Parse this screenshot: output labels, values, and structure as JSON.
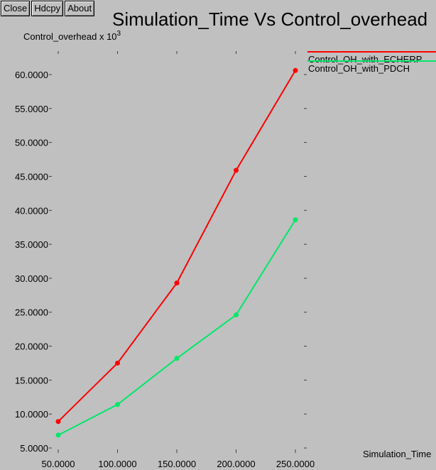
{
  "toolbar": {
    "close_label": "Close",
    "hdcpy_label": "Hdcpy",
    "about_label": "About"
  },
  "colors": {
    "background": "#c0c0c0",
    "axis": "#404040"
  },
  "chart_data": {
    "type": "line",
    "title": "Simulation_Time Vs Control_overhead",
    "ylabel": "Control_overhead x 10",
    "ylabel_exponent": "3",
    "xlabel": "Simulation_Time",
    "x": [
      50,
      100,
      150,
      200,
      250
    ],
    "x_tick_labels": [
      "50.0000",
      "100.0000",
      "150.0000",
      "200.0000",
      "250.0000"
    ],
    "xlim": [
      50,
      250
    ],
    "y_ticks": [
      5,
      10,
      15,
      20,
      25,
      30,
      35,
      40,
      45,
      50,
      55,
      60
    ],
    "y_tick_labels": [
      "5.0000",
      "10.0000",
      "15.0000",
      "20.0000",
      "25.0000",
      "30.0000",
      "35.0000",
      "40.0000",
      "45.0000",
      "50.0000",
      "55.0000",
      "60.0000"
    ],
    "ylim": [
      5,
      60
    ],
    "grid": false,
    "legend_position": "top-right",
    "series": [
      {
        "name": "Control_OH_with_ECHERP",
        "color": "#ff0000",
        "values": [
          8.9,
          17.5,
          29.3,
          45.9,
          60.6
        ]
      },
      {
        "name": "Control_OH_with_PDCH",
        "color": "#00e868",
        "values": [
          6.9,
          11.4,
          18.2,
          24.6,
          38.6
        ]
      }
    ]
  }
}
